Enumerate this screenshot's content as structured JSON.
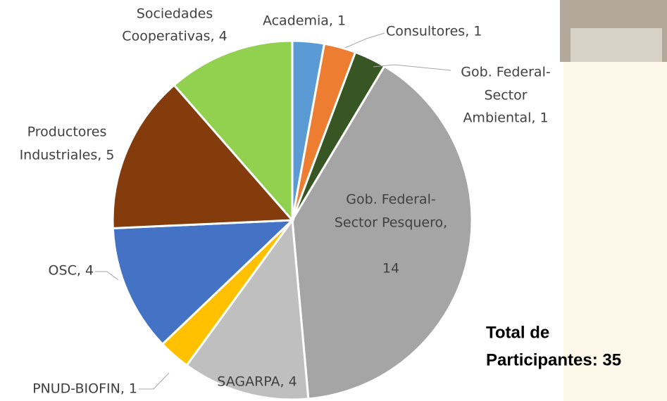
{
  "chart_data": {
    "type": "pie",
    "values": [
      1,
      1,
      1,
      14,
      4,
      1,
      4,
      5,
      4
    ],
    "value_labels": [
      [
        "Academia, 1"
      ],
      [
        "Consultores, 1"
      ],
      [
        "Gob. Federal-",
        "Sector",
        "Ambiental, 1"
      ],
      [
        "Gob. Federal-",
        "Sector Pesquero,",
        "14"
      ],
      [
        "SAGARPA, 4"
      ],
      [
        "PNUD-BIOFIN, 1"
      ],
      [
        "OSC, 4"
      ],
      [
        "Productores",
        "Industriales, 5"
      ],
      [
        "Sociedades",
        "Cooperativas, 4"
      ]
    ],
    "colors": [
      "#5b9bd5",
      "#ed7d31",
      "#375623",
      "#a5a5a5",
      "#bfbfbf",
      "#ffc000",
      "#4472c4",
      "#843c0c",
      "#92d050"
    ],
    "annotation": [
      "Total de",
      "Participantes: 35"
    ]
  }
}
